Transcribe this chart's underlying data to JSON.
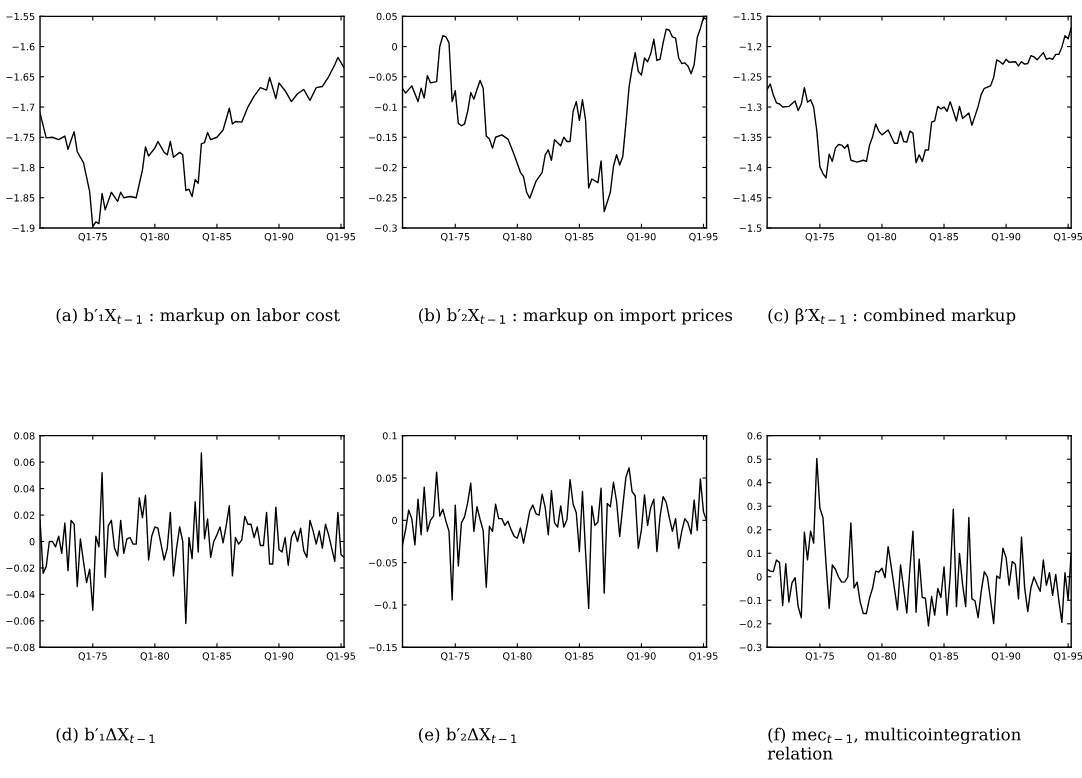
{
  "chart_data": [
    {
      "type": "line",
      "title": "(a) b′₁X$_{t−1}$ : markup on labor cost",
      "xlim": [
        "1970-10",
        "1995-04"
      ],
      "ylim": [
        -1.9,
        -1.55
      ],
      "xticks": [
        {
          "value": "1975-01",
          "label": "Q1-75"
        },
        {
          "value": "1980-01",
          "label": "Q1-80"
        },
        {
          "value": "1985-01",
          "label": "Q1-85"
        },
        {
          "value": "1990-01",
          "label": "Q1-90"
        },
        {
          "value": "1995-01",
          "label": "Q1-95"
        }
      ],
      "yticks": [
        -1.9,
        -1.85,
        -1.8,
        -1.75,
        -1.7,
        -1.65,
        -1.6,
        -1.55
      ],
      "series": [
        {
          "color": "#000000",
          "x": [
            "1970-10",
            "1971-04",
            "1971-10",
            "1972-04",
            "1972-10",
            "1973-01",
            "1973-04",
            "1973-07",
            "1973-10",
            "1974-04",
            "1974-10",
            "1975-01",
            "1975-04",
            "1975-07",
            "1975-10",
            "1976-01",
            "1976-07",
            "1977-01",
            "1977-04",
            "1977-07",
            "1978-01",
            "1978-07",
            "1979-01",
            "1979-04",
            "1979-07",
            "1980-01",
            "1980-04",
            "1980-10",
            "1981-01",
            "1981-04",
            "1981-07",
            "1982-01",
            "1982-04",
            "1982-07",
            "1982-10",
            "1983-01",
            "1983-04",
            "1983-07",
            "1983-10",
            "1984-01",
            "1984-04",
            "1984-07",
            "1985-01",
            "1985-07",
            "1986-01",
            "1986-04",
            "1986-07",
            "1987-01",
            "1987-07",
            "1988-01",
            "1988-07",
            "1989-01",
            "1989-04",
            "1989-10",
            "1990-01",
            "1990-07",
            "1991-01",
            "1991-07",
            "1992-01",
            "1992-07",
            "1993-01",
            "1993-07",
            "1994-01",
            "1994-07",
            "1994-10",
            "1995-04"
          ],
          "values": [
            -1.71,
            -1.751,
            -1.75,
            -1.754,
            -1.748,
            -1.77,
            -1.755,
            -1.741,
            -1.774,
            -1.792,
            -1.84,
            -1.898,
            -1.89,
            -1.893,
            -1.843,
            -1.87,
            -1.841,
            -1.856,
            -1.841,
            -1.85,
            -1.848,
            -1.85,
            -1.804,
            -1.766,
            -1.781,
            -1.768,
            -1.757,
            -1.775,
            -1.779,
            -1.757,
            -1.783,
            -1.775,
            -1.779,
            -1.838,
            -1.836,
            -1.848,
            -1.82,
            -1.826,
            -1.761,
            -1.759,
            -1.742,
            -1.754,
            -1.75,
            -1.738,
            -1.702,
            -1.728,
            -1.724,
            -1.725,
            -1.7,
            -1.682,
            -1.668,
            -1.672,
            -1.651,
            -1.686,
            -1.66,
            -1.673,
            -1.691,
            -1.678,
            -1.671,
            -1.689,
            -1.668,
            -1.666,
            -1.65,
            -1.63,
            -1.618,
            -1.635
          ]
        }
      ]
    },
    {
      "type": "line",
      "title": "(b) b′₂X$_{t−1}$ : markup on import prices",
      "xlim": [
        "1970-10",
        "1995-04"
      ],
      "ylim": [
        -0.3,
        0.05
      ],
      "xticks": [
        {
          "value": "1975-01",
          "label": "Q1-75"
        },
        {
          "value": "1980-01",
          "label": "Q1-80"
        },
        {
          "value": "1985-01",
          "label": "Q1-85"
        },
        {
          "value": "1990-01",
          "label": "Q1-90"
        },
        {
          "value": "1995-01",
          "label": "Q1-95"
        }
      ],
      "yticks": [
        -0.3,
        -0.25,
        -0.2,
        -0.15,
        -0.1,
        -0.05,
        0,
        0.05
      ],
      "series": [
        {
          "color": "#000000",
          "x": [
            "1970-10",
            "1971-01",
            "1971-07",
            "1972-01",
            "1972-04",
            "1972-07",
            "1972-10",
            "1973-01",
            "1973-07",
            "1973-10",
            "1974-01",
            "1974-04",
            "1974-07",
            "1974-10",
            "1975-01",
            "1975-04",
            "1975-07",
            "1975-10",
            "1976-01",
            "1976-04",
            "1976-07",
            "1976-10",
            "1977-01",
            "1977-04",
            "1977-07",
            "1977-10",
            "1978-01",
            "1978-04",
            "1978-10",
            "1979-04",
            "1979-10",
            "1980-04",
            "1980-07",
            "1980-10",
            "1981-01",
            "1981-07",
            "1982-01",
            "1982-04",
            "1982-07",
            "1982-10",
            "1983-01",
            "1983-07",
            "1983-10",
            "1984-01",
            "1984-04",
            "1984-07",
            "1984-10",
            "1985-01",
            "1985-04",
            "1985-07",
            "1985-10",
            "1986-01",
            "1986-07",
            "1986-10",
            "1987-01",
            "1987-07",
            "1987-10",
            "1988-01",
            "1988-04",
            "1988-07",
            "1988-10",
            "1989-01",
            "1989-04",
            "1989-07",
            "1989-10",
            "1990-01",
            "1990-04",
            "1990-07",
            "1990-10",
            "1991-01",
            "1991-04",
            "1991-07",
            "1991-10",
            "1992-01",
            "1992-04",
            "1992-07",
            "1992-10",
            "1993-01",
            "1993-04",
            "1993-07",
            "1993-10",
            "1994-01",
            "1994-04",
            "1994-07",
            "1994-10",
            "1995-01",
            "1995-04"
          ],
          "values": [
            -0.069,
            -0.077,
            -0.065,
            -0.091,
            -0.069,
            -0.085,
            -0.048,
            -0.06,
            -0.058,
            0.0,
            0.018,
            0.016,
            0.006,
            -0.091,
            -0.073,
            -0.127,
            -0.131,
            -0.128,
            -0.107,
            -0.076,
            -0.087,
            -0.071,
            -0.056,
            -0.069,
            -0.148,
            -0.153,
            -0.168,
            -0.15,
            -0.146,
            -0.153,
            -0.179,
            -0.208,
            -0.215,
            -0.241,
            -0.251,
            -0.223,
            -0.208,
            -0.179,
            -0.171,
            -0.188,
            -0.154,
            -0.164,
            -0.15,
            -0.157,
            -0.157,
            -0.107,
            -0.091,
            -0.122,
            -0.088,
            -0.121,
            -0.234,
            -0.219,
            -0.225,
            -0.189,
            -0.273,
            -0.241,
            -0.198,
            -0.179,
            -0.196,
            -0.182,
            -0.127,
            -0.067,
            -0.036,
            -0.01,
            -0.041,
            -0.047,
            -0.019,
            -0.025,
            -0.012,
            0.012,
            -0.023,
            -0.021,
            0.006,
            0.029,
            0.027,
            0.016,
            0.014,
            -0.019,
            -0.028,
            -0.027,
            -0.032,
            -0.045,
            -0.03,
            0.015,
            0.03,
            0.048,
            0.045
          ]
        }
      ]
    },
    {
      "type": "line",
      "title": "(c) β′X$_{t−1}$ : combined markup",
      "xlim": [
        "1970-10",
        "1995-04"
      ],
      "ylim": [
        -1.5,
        -1.15
      ],
      "xticks": [
        {
          "value": "1975-01",
          "label": "Q1-75"
        },
        {
          "value": "1980-01",
          "label": "Q1-80"
        },
        {
          "value": "1985-01",
          "label": "Q1-85"
        },
        {
          "value": "1990-01",
          "label": "Q1-90"
        },
        {
          "value": "1995-01",
          "label": "Q1-95"
        }
      ],
      "yticks": [
        -1.5,
        -1.45,
        -1.4,
        -1.35,
        -1.3,
        -1.25,
        -1.2,
        -1.15
      ],
      "series": [
        {
          "color": "#000000",
          "x": [
            "1970-10",
            "1971-01",
            "1971-04",
            "1971-07",
            "1971-10",
            "1972-01",
            "1972-07",
            "1973-01",
            "1973-04",
            "1973-07",
            "1973-10",
            "1974-01",
            "1974-04",
            "1974-07",
            "1974-10",
            "1975-01",
            "1975-04",
            "1975-07",
            "1975-10",
            "1976-01",
            "1976-04",
            "1976-07",
            "1976-10",
            "1977-01",
            "1977-04",
            "1977-07",
            "1978-01",
            "1978-07",
            "1978-10",
            "1979-01",
            "1979-04",
            "1979-07",
            "1979-10",
            "1980-01",
            "1980-07",
            "1981-01",
            "1981-04",
            "1981-07",
            "1981-10",
            "1982-01",
            "1982-04",
            "1982-07",
            "1982-10",
            "1983-01",
            "1983-04",
            "1983-07",
            "1983-10",
            "1984-01",
            "1984-04",
            "1984-07",
            "1984-10",
            "1985-01",
            "1985-04",
            "1985-07",
            "1985-10",
            "1986-01",
            "1986-04",
            "1986-07",
            "1987-01",
            "1987-04",
            "1987-07",
            "1987-10",
            "1988-01",
            "1988-04",
            "1988-10",
            "1989-01",
            "1989-04",
            "1989-07",
            "1989-10",
            "1990-01",
            "1990-04",
            "1990-10",
            "1991-01",
            "1991-04",
            "1991-07",
            "1991-10",
            "1992-01",
            "1992-04",
            "1992-07",
            "1993-01",
            "1993-04",
            "1993-07",
            "1993-10",
            "1994-01",
            "1994-04",
            "1994-07",
            "1994-10",
            "1995-01",
            "1995-04"
          ],
          "values": [
            -1.271,
            -1.262,
            -1.28,
            -1.293,
            -1.295,
            -1.3,
            -1.299,
            -1.29,
            -1.306,
            -1.295,
            -1.268,
            -1.292,
            -1.288,
            -1.3,
            -1.339,
            -1.399,
            -1.41,
            -1.417,
            -1.378,
            -1.39,
            -1.368,
            -1.362,
            -1.363,
            -1.368,
            -1.362,
            -1.388,
            -1.391,
            -1.388,
            -1.39,
            -1.363,
            -1.349,
            -1.328,
            -1.34,
            -1.346,
            -1.338,
            -1.36,
            -1.36,
            -1.34,
            -1.357,
            -1.358,
            -1.34,
            -1.343,
            -1.392,
            -1.379,
            -1.39,
            -1.371,
            -1.371,
            -1.325,
            -1.323,
            -1.299,
            -1.303,
            -1.3,
            -1.307,
            -1.291,
            -1.307,
            -1.323,
            -1.299,
            -1.319,
            -1.31,
            -1.33,
            -1.315,
            -1.299,
            -1.279,
            -1.269,
            -1.265,
            -1.251,
            -1.222,
            -1.225,
            -1.229,
            -1.221,
            -1.226,
            -1.225,
            -1.232,
            -1.225,
            -1.229,
            -1.228,
            -1.215,
            -1.217,
            -1.222,
            -1.21,
            -1.221,
            -1.219,
            -1.221,
            -1.213,
            -1.213,
            -1.201,
            -1.182,
            -1.187,
            -1.169
          ]
        }
      ]
    },
    {
      "type": "line",
      "title": "(d) b′₁ΔX$_{t−1}$",
      "xlim": [
        "1970-10",
        "1995-04"
      ],
      "ylim": [
        -0.08,
        0.08
      ],
      "xticks": [
        {
          "value": "1975-01",
          "label": "Q1-75"
        },
        {
          "value": "1980-01",
          "label": "Q1-80"
        },
        {
          "value": "1985-01",
          "label": "Q1-85"
        },
        {
          "value": "1990-01",
          "label": "Q1-90"
        },
        {
          "value": "1995-01",
          "label": "Q1-95"
        }
      ],
      "yticks": [
        -0.08,
        -0.06,
        -0.04,
        -0.02,
        0,
        0.02,
        0.04,
        0.06,
        0.08
      ],
      "x": [
        "1970-10",
        "1971-01",
        "1971-04",
        "1971-07",
        "1971-10",
        "1972-01",
        "1972-04",
        "1972-07",
        "1972-10",
        "1973-01",
        "1973-04",
        "1973-07",
        "1973-10",
        "1974-01",
        "1974-04",
        "1974-07",
        "1974-10",
        "1975-01",
        "1975-04",
        "1975-07",
        "1975-10",
        "1976-01",
        "1976-04",
        "1976-07",
        "1976-10",
        "1977-01",
        "1977-04",
        "1977-07",
        "1977-10",
        "1978-01",
        "1978-04",
        "1978-07",
        "1978-10",
        "1979-01",
        "1979-04",
        "1979-07",
        "1979-10",
        "1980-01",
        "1980-04",
        "1980-07",
        "1980-10",
        "1981-01",
        "1981-04",
        "1981-07",
        "1981-10",
        "1982-01",
        "1982-04",
        "1982-07",
        "1982-10",
        "1983-01",
        "1983-04",
        "1983-07",
        "1983-10",
        "1984-01",
        "1984-04",
        "1984-07",
        "1984-10",
        "1985-01",
        "1985-04",
        "1985-07",
        "1985-10",
        "1986-01",
        "1986-04",
        "1986-07",
        "1986-10",
        "1987-01",
        "1987-04",
        "1987-07",
        "1987-10",
        "1988-01",
        "1988-04",
        "1988-07",
        "1988-10",
        "1989-01",
        "1989-04",
        "1989-07",
        "1989-10",
        "1990-01",
        "1990-04",
        "1990-07",
        "1990-10",
        "1991-01",
        "1991-04",
        "1991-07",
        "1991-10",
        "1992-01",
        "1992-04",
        "1992-07",
        "1992-10",
        "1993-01",
        "1993-04",
        "1993-07",
        "1993-10",
        "1994-01",
        "1994-04",
        "1994-07",
        "1994-10",
        "1995-01",
        "1995-04"
      ],
      "series": [
        {
          "color": "#000000",
          "values": [
            0.016,
            -0.024,
            -0.019,
            0,
            0,
            -0.004,
            0.004,
            -0.009,
            0.014,
            -0.022,
            0.016,
            0.013,
            -0.034,
            0.002,
            -0.015,
            -0.031,
            -0.021,
            -0.052,
            0.004,
            -0.004,
            0.052,
            -0.027,
            0.012,
            0.016,
            -0.005,
            -0.011,
            0.016,
            -0.009,
            0.002,
            0.003,
            -0.002,
            -0.002,
            0.033,
            0.018,
            0.035,
            -0.014,
            0.004,
            0.011,
            0.01,
            -0.002,
            -0.014,
            -0.005,
            0.022,
            -0.026,
            -0.005,
            0.011,
            0,
            -0.062,
            0.003,
            -0.013,
            0.03,
            -0.008,
            0.067,
            0.002,
            0.017,
            -0.012,
            0,
            0.005,
            0.011,
            -0.001,
            0.012,
            0.027,
            -0.026,
            0.003,
            -0.002,
            0.001,
            0.019,
            0.013,
            0.013,
            0.003,
            0.011,
            -0.003,
            -0.003,
            0.022,
            -0.017,
            -0.017,
            0.026,
            -0.006,
            -0.008,
            0.003,
            -0.018,
            0.003,
            0.008,
            0,
            0.01,
            -0.007,
            -0.012,
            0.016,
            0.008,
            -0.002,
            0.008,
            -0.005,
            0.013,
            0.005,
            -0.005,
            -0.015,
            0.022,
            -0.01,
            -0.012
          ]
        }
      ]
    },
    {
      "type": "line",
      "title": "(e) b′₂ΔX$_{t−1}$",
      "xlim": [
        "1970-10",
        "1995-04"
      ],
      "ylim": [
        -0.15,
        0.1
      ],
      "xticks": [
        {
          "value": "1975-01",
          "label": "Q1-75"
        },
        {
          "value": "1980-01",
          "label": "Q1-80"
        },
        {
          "value": "1985-01",
          "label": "Q1-85"
        },
        {
          "value": "1990-01",
          "label": "Q1-90"
        },
        {
          "value": "1995-01",
          "label": "Q1-95"
        }
      ],
      "yticks": [
        -0.15,
        -0.1,
        -0.05,
        0,
        0.05,
        0.1
      ],
      "x": [
        "1970-10",
        "1971-01",
        "1971-04",
        "1971-07",
        "1971-10",
        "1972-01",
        "1972-04",
        "1972-07",
        "1972-10",
        "1973-01",
        "1973-04",
        "1973-07",
        "1973-10",
        "1974-01",
        "1974-04",
        "1974-07",
        "1974-10",
        "1975-01",
        "1975-04",
        "1975-07",
        "1975-10",
        "1976-01",
        "1976-04",
        "1976-07",
        "1976-10",
        "1977-01",
        "1977-04",
        "1977-07",
        "1977-10",
        "1978-01",
        "1978-04",
        "1978-07",
        "1978-10",
        "1979-01",
        "1979-04",
        "1979-07",
        "1979-10",
        "1980-01",
        "1980-04",
        "1980-07",
        "1980-10",
        "1981-01",
        "1981-04",
        "1981-07",
        "1981-10",
        "1982-01",
        "1982-04",
        "1982-07",
        "1982-10",
        "1983-01",
        "1983-04",
        "1983-07",
        "1983-10",
        "1984-01",
        "1984-04",
        "1984-07",
        "1984-10",
        "1985-01",
        "1985-04",
        "1985-07",
        "1985-10",
        "1986-01",
        "1986-04",
        "1986-07",
        "1986-10",
        "1987-01",
        "1987-04",
        "1987-07",
        "1987-10",
        "1988-01",
        "1988-04",
        "1988-07",
        "1988-10",
        "1989-01",
        "1989-04",
        "1989-07",
        "1989-10",
        "1990-01",
        "1990-04",
        "1990-07",
        "1990-10",
        "1991-01",
        "1991-04",
        "1991-07",
        "1991-10",
        "1992-01",
        "1992-04",
        "1992-07",
        "1992-10",
        "1993-01",
        "1993-04",
        "1993-07",
        "1993-10",
        "1994-01",
        "1994-04",
        "1994-07",
        "1994-10",
        "1995-01",
        "1995-04"
      ],
      "series": [
        {
          "color": "#000000",
          "values": [
            -0.029,
            -0.011,
            0.012,
            0.002,
            -0.029,
            0.025,
            -0.017,
            0.039,
            -0.013,
            0,
            0.005,
            0.057,
            0.005,
            0.013,
            -0.001,
            -0.013,
            -0.094,
            0.018,
            -0.054,
            -0.003,
            0.004,
            0.021,
            0.044,
            -0.013,
            0.016,
            0.001,
            -0.012,
            -0.079,
            -0.007,
            -0.013,
            0.019,
            0.002,
            0.002,
            -0.006,
            -0.001,
            -0.011,
            -0.019,
            -0.021,
            -0.009,
            -0.027,
            -0.009,
            0.011,
            0.018,
            0.008,
            0.006,
            0.031,
            0.015,
            -0.017,
            0.035,
            -0.003,
            -0.008,
            0.017,
            -0.008,
            0.001,
            0.048,
            0.019,
            0.009,
            -0.037,
            0.034,
            -0.037,
            -0.104,
            0.017,
            -0.006,
            -0.002,
            0.038,
            -0.086,
            0.02,
            0.016,
            0.045,
            0.022,
            -0.019,
            0.017,
            0.051,
            0.062,
            0.034,
            0.029,
            -0.033,
            -0.011,
            0.03,
            -0.006,
            0.015,
            0.025,
            -0.037,
            0.004,
            0.028,
            0.021,
            0.003,
            -0.013,
            0.002,
            -0.033,
            -0.013,
            0.002,
            -0.003,
            -0.016,
            0.024,
            -0.012,
            0.049,
            0.01,
            0.0
          ]
        }
      ]
    },
    {
      "type": "line",
      "title": "(f) mec$_{t−1}$, multicointegration relation",
      "xlim": [
        "1970-10",
        "1995-04"
      ],
      "ylim": [
        -0.3,
        0.6
      ],
      "xticks": [
        {
          "value": "1975-01",
          "label": "Q1-75"
        },
        {
          "value": "1980-01",
          "label": "Q1-80"
        },
        {
          "value": "1985-01",
          "label": "Q1-85"
        },
        {
          "value": "1990-01",
          "label": "Q1-90"
        },
        {
          "value": "1995-01",
          "label": "Q1-95"
        }
      ],
      "yticks": [
        -0.3,
        -0.2,
        -0.1,
        0,
        0.1,
        0.2,
        0.3,
        0.4,
        0.5,
        0.6
      ],
      "x": [
        "1970-10",
        "1971-01",
        "1971-04",
        "1971-07",
        "1971-10",
        "1972-01",
        "1972-04",
        "1972-07",
        "1972-10",
        "1973-01",
        "1973-04",
        "1973-07",
        "1973-10",
        "1974-01",
        "1974-04",
        "1974-07",
        "1974-10",
        "1975-01",
        "1975-04",
        "1975-07",
        "1975-10",
        "1976-01",
        "1976-04",
        "1976-07",
        "1976-10",
        "1977-01",
        "1977-04",
        "1977-07",
        "1977-10",
        "1978-01",
        "1978-04",
        "1978-07",
        "1978-10",
        "1979-01",
        "1979-04",
        "1979-07",
        "1979-10",
        "1980-01",
        "1980-04",
        "1980-07",
        "1980-10",
        "1981-01",
        "1981-04",
        "1981-07",
        "1981-10",
        "1982-01",
        "1982-04",
        "1982-07",
        "1982-10",
        "1983-01",
        "1983-04",
        "1983-07",
        "1983-10",
        "1984-01",
        "1984-04",
        "1984-07",
        "1984-10",
        "1985-01",
        "1985-04",
        "1985-07",
        "1985-10",
        "1986-01",
        "1986-04",
        "1986-07",
        "1986-10",
        "1987-01",
        "1987-04",
        "1987-07",
        "1987-10",
        "1988-01",
        "1988-04",
        "1988-07",
        "1988-10",
        "1989-01",
        "1989-04",
        "1989-07",
        "1989-10",
        "1990-01",
        "1990-04",
        "1990-07",
        "1990-10",
        "1991-01",
        "1991-04",
        "1991-07",
        "1991-10",
        "1992-01",
        "1992-04",
        "1992-07",
        "1992-10",
        "1993-01",
        "1993-04",
        "1993-07",
        "1993-10",
        "1994-01",
        "1994-04",
        "1994-07",
        "1994-10",
        "1995-01",
        "1995-04"
      ],
      "series": [
        {
          "color": "#000000",
          "values": [
            0.032,
            0.024,
            0.022,
            0.071,
            0.06,
            -0.122,
            0.056,
            -0.108,
            -0.026,
            -0.004,
            -0.127,
            -0.174,
            0.19,
            0.072,
            0.194,
            0.143,
            0.503,
            0.291,
            0.252,
            0.053,
            -0.134,
            0.05,
            0.032,
            0,
            -0.023,
            -0.022,
            -0.001,
            0.229,
            -0.048,
            -0.023,
            -0.108,
            -0.156,
            -0.156,
            -0.091,
            -0.048,
            0.024,
            0.02,
            0.036,
            -0.004,
            0.128,
            0.042,
            -0.048,
            -0.141,
            0.05,
            -0.05,
            -0.154,
            0.032,
            0.194,
            -0.151,
            0.075,
            -0.088,
            -0.091,
            -0.209,
            -0.084,
            -0.163,
            -0.05,
            -0.088,
            0.042,
            -0.163,
            0.003,
            0.287,
            -0.127,
            0.099,
            -0.033,
            -0.127,
            0.252,
            -0.094,
            -0.102,
            -0.174,
            -0.062,
            0.022,
            -0.001,
            -0.098,
            -0.199,
            0.003,
            -0.007,
            0.121,
            0.082,
            -0.036,
            0.065,
            0.053,
            -0.094,
            0.168,
            -0.045,
            -0.148,
            -0.048,
            -0.001,
            -0.033,
            -0.062,
            0.071,
            -0.036,
            0.017,
            -0.079,
            0.01,
            -0.098,
            -0.194,
            0.017,
            -0.098,
            0.099
          ]
        }
      ]
    }
  ]
}
